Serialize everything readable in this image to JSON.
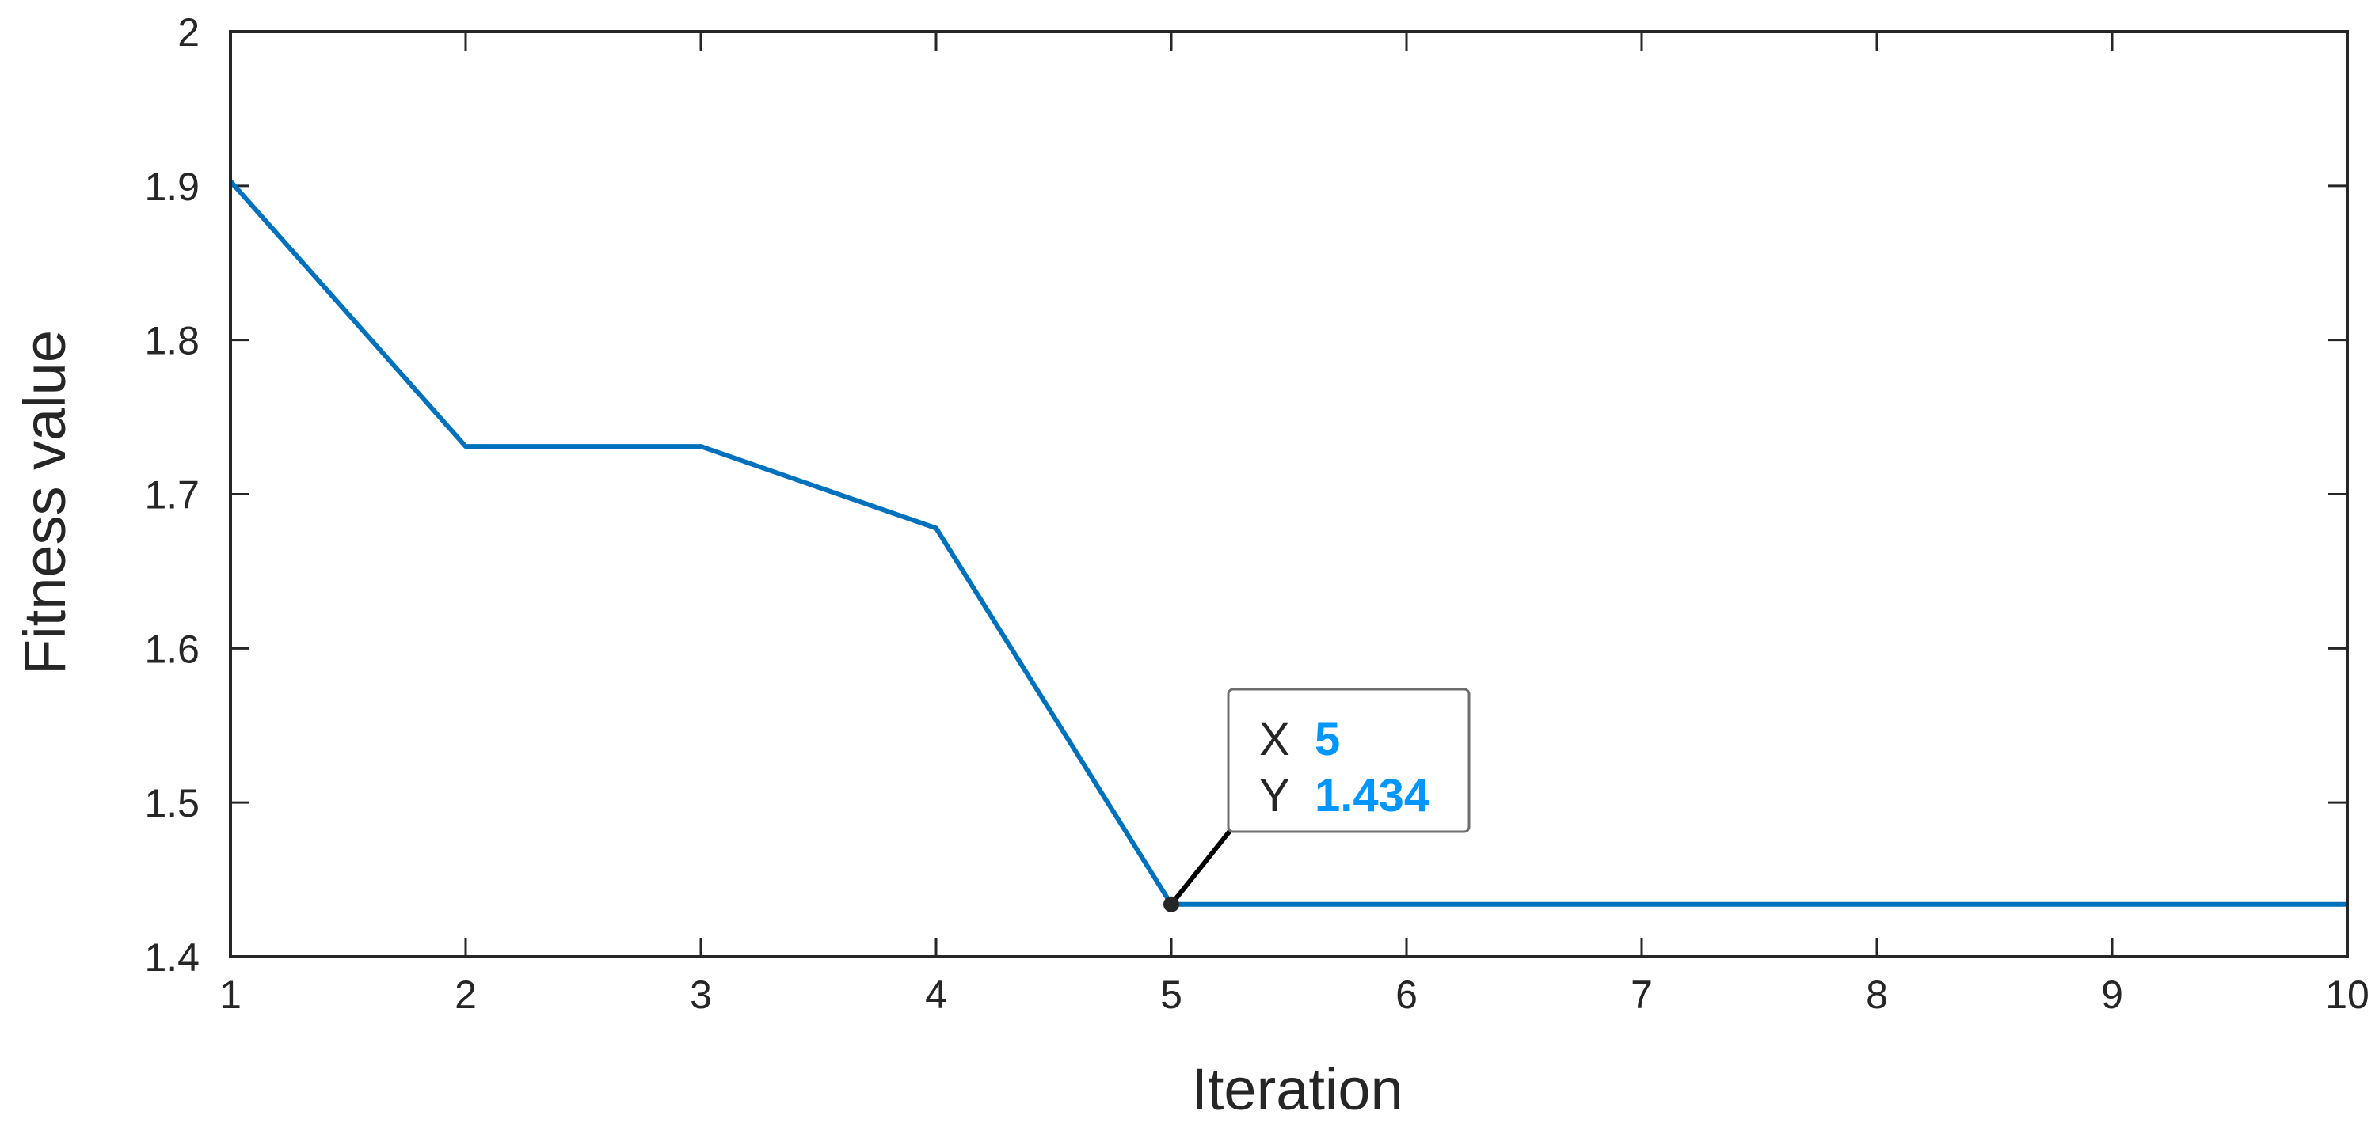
{
  "chart_data": {
    "type": "line",
    "title": "",
    "xlabel": "Iteration",
    "ylabel": "Fitness value",
    "xlim": [
      1,
      10
    ],
    "ylim": [
      1.4,
      2
    ],
    "xticks": [
      "1",
      "2",
      "3",
      "4",
      "5",
      "6",
      "7",
      "8",
      "9",
      "10"
    ],
    "yticks": [
      "1.4",
      "1.5",
      "1.6",
      "1.7",
      "1.8",
      "1.9",
      "2"
    ],
    "grid": false,
    "series": [
      {
        "x": [
          1,
          2,
          3,
          4,
          5,
          6,
          7,
          8,
          9,
          10
        ],
        "y": [
          1.903,
          1.731,
          1.731,
          1.678,
          1.434,
          1.434,
          1.434,
          1.434,
          1.434,
          1.434
        ],
        "color": "#0072BD"
      }
    ],
    "datatip": {
      "x_key": "X",
      "x_value": "5",
      "y_key": "Y",
      "y_value": "1.434",
      "value_color": "#0096FF",
      "point": [
        5,
        1.434
      ]
    }
  }
}
